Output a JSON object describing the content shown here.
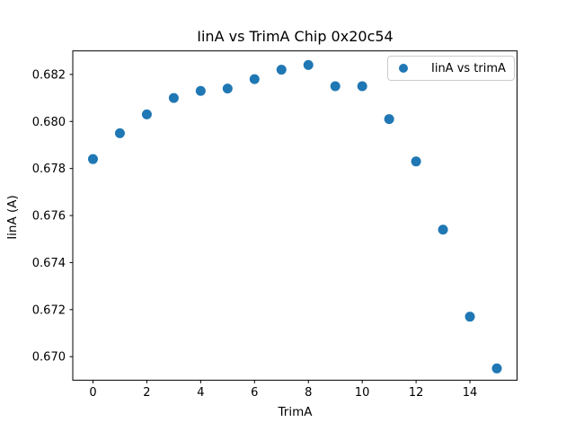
{
  "figure": {
    "background_color": "#ffffff",
    "text_color": "#000000",
    "spine_color": "#000000"
  },
  "chart_data": {
    "type": "scatter",
    "title": "IinA vs TrimA Chip 0x20c54",
    "xlabel": "TrimA",
    "ylabel": "IinA (A)",
    "grid": false,
    "xlim": [
      -0.75,
      15.75
    ],
    "ylim": [
      0.669,
      0.683
    ],
    "xticks": [
      0,
      2,
      4,
      6,
      8,
      10,
      12,
      14
    ],
    "xtick_labels": [
      "0",
      "2",
      "4",
      "6",
      "8",
      "10",
      "12",
      "14"
    ],
    "yticks": [
      0.67,
      0.672,
      0.674,
      0.676,
      0.678,
      0.68,
      0.682
    ],
    "ytick_labels": [
      "0.670",
      "0.672",
      "0.674",
      "0.676",
      "0.678",
      "0.680",
      "0.682"
    ],
    "legend": {
      "position": "upper right",
      "entries": [
        "IinA vs trimA"
      ]
    },
    "series": [
      {
        "name": "IinA vs trimA",
        "marker": "circle",
        "color": "#1f77b4",
        "x": [
          0,
          1,
          2,
          3,
          4,
          5,
          6,
          7,
          8,
          9,
          10,
          11,
          12,
          13,
          14,
          15
        ],
        "y": [
          0.6784,
          0.6795,
          0.6803,
          0.681,
          0.6813,
          0.6814,
          0.6818,
          0.6822,
          0.6824,
          0.6815,
          0.6815,
          0.6801,
          0.6783,
          0.6754,
          0.6717,
          0.6695
        ]
      }
    ]
  }
}
